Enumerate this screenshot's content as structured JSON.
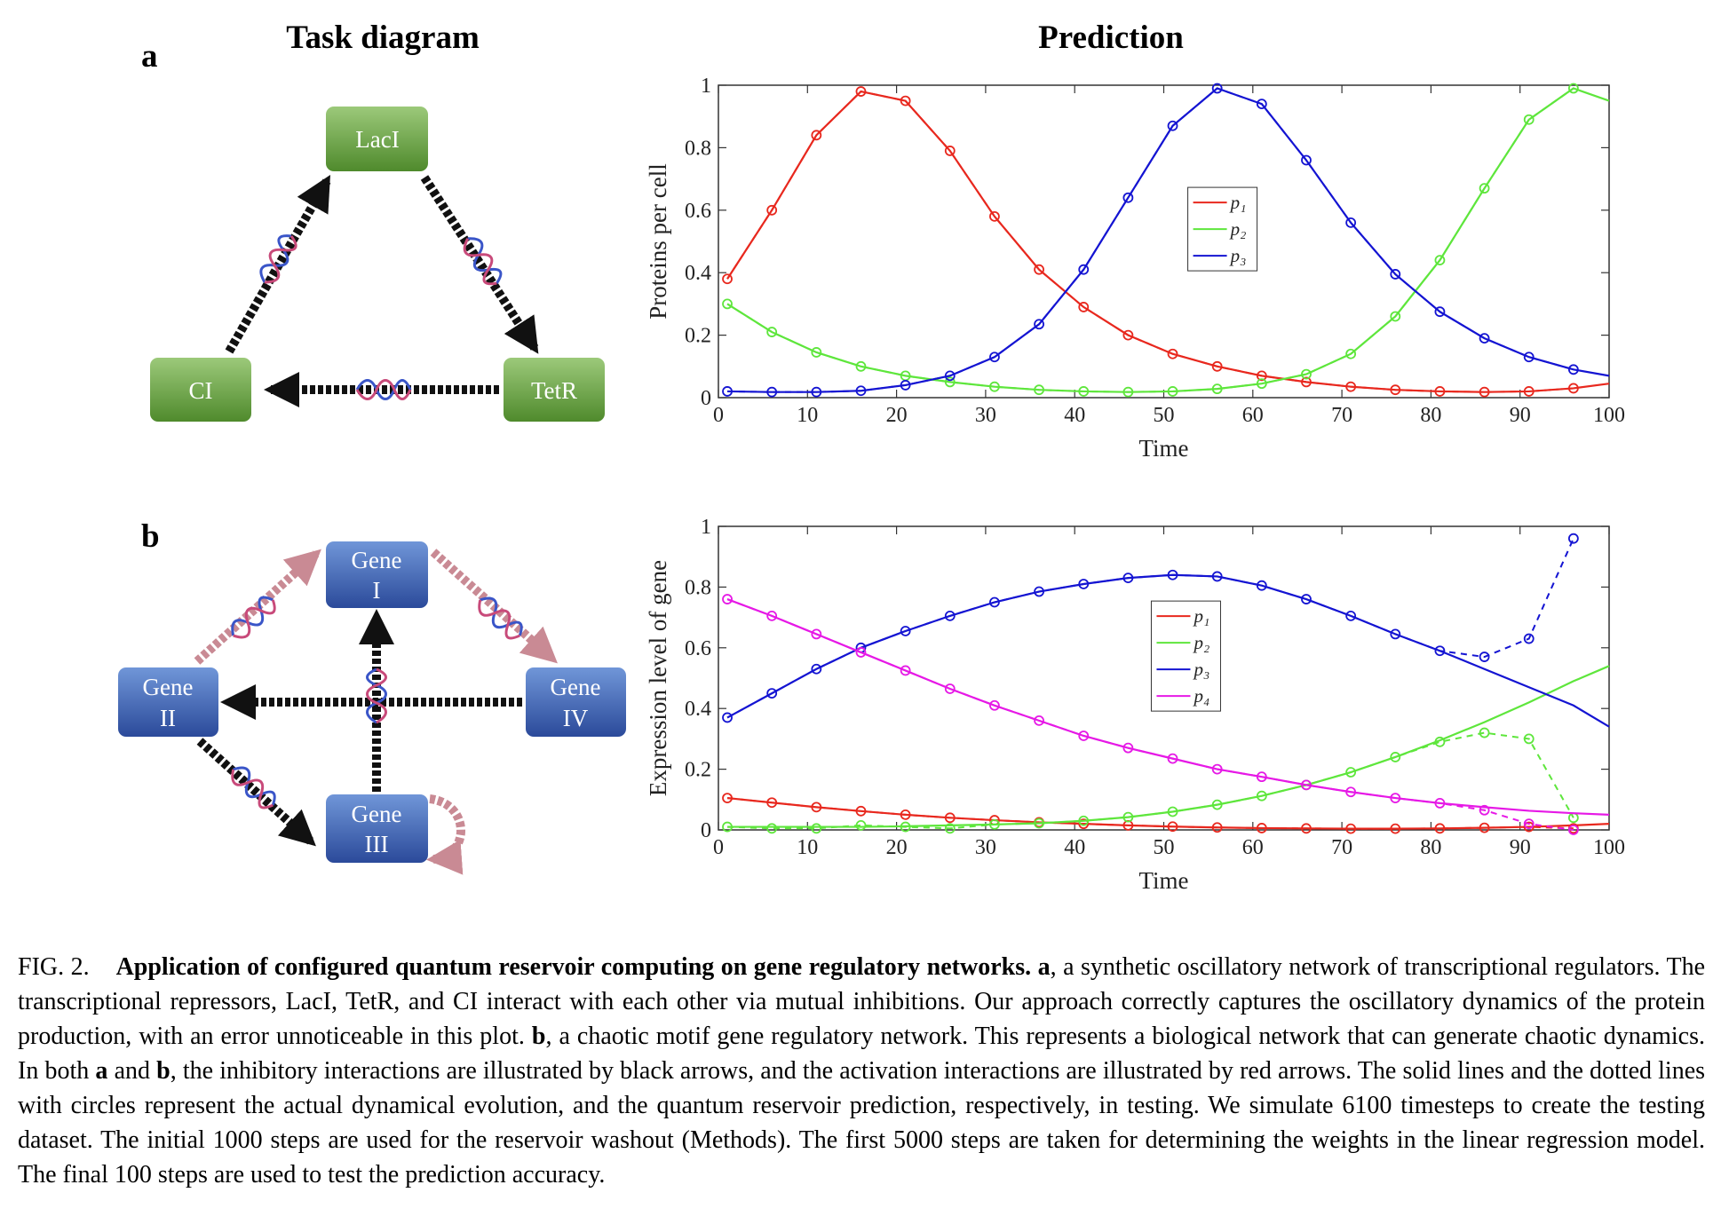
{
  "panel_labels": [
    "a",
    "b"
  ],
  "column_titles": [
    "Task diagram",
    "Prediction"
  ],
  "diagrams": [
    {
      "nodes": [
        {
          "label": [
            "LacI"
          ]
        },
        {
          "label": [
            "CI"
          ]
        },
        {
          "label": [
            "TetR"
          ]
        }
      ]
    },
    {
      "nodes": [
        {
          "label": [
            "Gene",
            "I"
          ]
        },
        {
          "label": [
            "Gene",
            "II"
          ]
        },
        {
          "label": [
            "Gene",
            "III"
          ]
        },
        {
          "label": [
            "Gene",
            "IV"
          ]
        }
      ]
    }
  ],
  "chart_data": [
    {
      "type": "line",
      "xlabel": "Time",
      "ylabel": "Proteins per cell",
      "x": [
        1,
        6,
        11,
        16,
        21,
        26,
        31,
        36,
        41,
        46,
        51,
        56,
        61,
        66,
        71,
        76,
        81,
        86,
        91,
        96,
        100
      ],
      "marker_x": [
        1,
        6,
        11,
        16,
        21,
        26,
        31,
        36,
        41,
        46,
        51,
        56,
        61,
        66,
        71,
        76,
        81,
        86,
        91,
        96
      ],
      "xlim": [
        0,
        100
      ],
      "xticks": [
        0,
        10,
        20,
        30,
        40,
        50,
        60,
        70,
        80,
        90,
        100
      ],
      "ylim": [
        0,
        1
      ],
      "yticks": [
        0,
        0.2,
        0.4,
        0.6,
        0.8,
        1
      ],
      "legend": "center",
      "series": [
        {
          "name": "p₁",
          "color": "#e8281e",
          "values": [
            0.38,
            0.6,
            0.84,
            0.98,
            0.95,
            0.79,
            0.58,
            0.41,
            0.29,
            0.2,
            0.14,
            0.1,
            0.07,
            0.05,
            0.035,
            0.025,
            0.02,
            0.018,
            0.02,
            0.03,
            0.045
          ],
          "predicted": [
            0.38,
            0.6,
            0.84,
            0.98,
            0.95,
            0.79,
            0.58,
            0.41,
            0.29,
            0.2,
            0.14,
            0.1,
            0.07,
            0.05,
            0.035,
            0.025,
            0.02,
            0.018,
            0.02,
            0.03
          ]
        },
        {
          "name": "p₂",
          "color": "#5ee63c",
          "values": [
            0.3,
            0.21,
            0.145,
            0.1,
            0.07,
            0.05,
            0.035,
            0.025,
            0.02,
            0.018,
            0.02,
            0.028,
            0.045,
            0.075,
            0.14,
            0.26,
            0.44,
            0.67,
            0.89,
            0.99,
            0.95
          ],
          "predicted": [
            0.3,
            0.21,
            0.145,
            0.1,
            0.07,
            0.05,
            0.035,
            0.025,
            0.02,
            0.018,
            0.02,
            0.028,
            0.045,
            0.075,
            0.14,
            0.26,
            0.44,
            0.67,
            0.89,
            0.99
          ]
        },
        {
          "name": "p₃",
          "color": "#1414d2",
          "values": [
            0.02,
            0.018,
            0.018,
            0.022,
            0.04,
            0.07,
            0.13,
            0.235,
            0.41,
            0.64,
            0.87,
            0.99,
            0.94,
            0.76,
            0.56,
            0.395,
            0.275,
            0.19,
            0.13,
            0.09,
            0.07
          ],
          "predicted": [
            0.02,
            0.018,
            0.018,
            0.022,
            0.04,
            0.07,
            0.13,
            0.235,
            0.41,
            0.64,
            0.87,
            0.99,
            0.94,
            0.76,
            0.56,
            0.395,
            0.275,
            0.19,
            0.13,
            0.09
          ]
        }
      ]
    },
    {
      "type": "line",
      "xlabel": "Time",
      "ylabel": "Expression level of gene",
      "x": [
        1,
        6,
        11,
        16,
        21,
        26,
        31,
        36,
        41,
        46,
        51,
        56,
        61,
        66,
        71,
        76,
        81,
        86,
        91,
        96,
        100
      ],
      "marker_x": [
        1,
        6,
        11,
        16,
        21,
        26,
        31,
        36,
        41,
        46,
        51,
        56,
        61,
        66,
        71,
        76,
        81,
        86,
        91,
        96
      ],
      "xlim": [
        0,
        100
      ],
      "xticks": [
        0,
        10,
        20,
        30,
        40,
        50,
        60,
        70,
        80,
        90,
        100
      ],
      "ylim": [
        0,
        1
      ],
      "yticks": [
        0,
        0.2,
        0.4,
        0.6,
        0.8,
        1
      ],
      "legend": "upper center",
      "series": [
        {
          "name": "p₁",
          "color": "#e8281e",
          "values": [
            0.105,
            0.09,
            0.075,
            0.062,
            0.05,
            0.04,
            0.032,
            0.025,
            0.02,
            0.015,
            0.011,
            0.008,
            0.006,
            0.005,
            0.004,
            0.004,
            0.005,
            0.007,
            0.01,
            0.015,
            0.02
          ],
          "predicted": [
            0.105,
            0.09,
            0.075,
            0.062,
            0.05,
            0.04,
            0.032,
            0.025,
            0.02,
            0.015,
            0.011,
            0.008,
            0.006,
            0.005,
            0.004,
            0.004,
            0.005,
            0.007,
            0.01,
            0.005
          ]
        },
        {
          "name": "p₂",
          "color": "#5ee63c",
          "values": [
            0.01,
            0.01,
            0.01,
            0.01,
            0.012,
            0.015,
            0.018,
            0.022,
            0.03,
            0.042,
            0.06,
            0.083,
            0.112,
            0.148,
            0.19,
            0.24,
            0.295,
            0.355,
            0.42,
            0.49,
            0.54
          ],
          "predicted": [
            0.01,
            0.005,
            0.005,
            0.015,
            0.01,
            0.005,
            0.018,
            0.022,
            0.03,
            0.042,
            0.06,
            0.083,
            0.112,
            0.148,
            0.19,
            0.24,
            0.29,
            0.32,
            0.3,
            0.04
          ]
        },
        {
          "name": "p₃",
          "color": "#1414d2",
          "values": [
            0.37,
            0.45,
            0.53,
            0.6,
            0.655,
            0.705,
            0.75,
            0.785,
            0.81,
            0.83,
            0.84,
            0.835,
            0.805,
            0.76,
            0.705,
            0.645,
            0.59,
            0.53,
            0.47,
            0.41,
            0.34
          ],
          "predicted": [
            0.37,
            0.45,
            0.53,
            0.6,
            0.655,
            0.705,
            0.75,
            0.785,
            0.81,
            0.83,
            0.84,
            0.835,
            0.805,
            0.76,
            0.705,
            0.645,
            0.59,
            0.57,
            0.63,
            0.96
          ]
        },
        {
          "name": "p₄",
          "color": "#e619e6",
          "values": [
            0.76,
            0.705,
            0.645,
            0.585,
            0.525,
            0.465,
            0.41,
            0.36,
            0.31,
            0.27,
            0.235,
            0.2,
            0.175,
            0.148,
            0.125,
            0.105,
            0.088,
            0.075,
            0.063,
            0.055,
            0.05
          ],
          "predicted": [
            0.76,
            0.705,
            0.645,
            0.585,
            0.525,
            0.465,
            0.41,
            0.36,
            0.31,
            0.27,
            0.235,
            0.2,
            0.175,
            0.148,
            0.125,
            0.105,
            0.088,
            0.065,
            0.02,
            0
          ]
        }
      ]
    }
  ],
  "caption": {
    "label": "FIG. 2.",
    "title": "Application of configured quantum reservoir computing on gene regulatory networks.",
    "body": [
      {
        "text": "a",
        "bold": true
      },
      {
        "text": ", a synthetic oscillatory network of transcriptional regulators. The transcriptional repressors, LacI, TetR, and CI interact with each other via mutual inhibitions. Our approach correctly captures the oscillatory dynamics of the protein production, with an error unnoticeable in this plot.",
        "bold": false
      },
      {
        "text": "b",
        "bold": true
      },
      {
        "text": ", a chaotic motif gene regulatory network. This represents a biological network that can generate chaotic dynamics. In both",
        "bold": false
      },
      {
        "text": "a",
        "bold": true
      },
      {
        "text": "and",
        "bold": false
      },
      {
        "text": "b",
        "bold": true
      },
      {
        "text": ", the inhibitory interactions are illustrated by black arrows, and the activation interactions are illustrated by red arrows. The solid lines and the dotted lines with circles represent the actual dynamical evolution, and the quantum reservoir prediction, respectively, in testing. We simulate 6100 timesteps to create the testing dataset. The initial 1000 steps are used for the reservoir washout (Methods). The first 5000 steps are taken for determining the weights in the linear regression model. The final 100 steps are used to test the prediction accuracy.",
        "bold": false
      }
    ]
  }
}
